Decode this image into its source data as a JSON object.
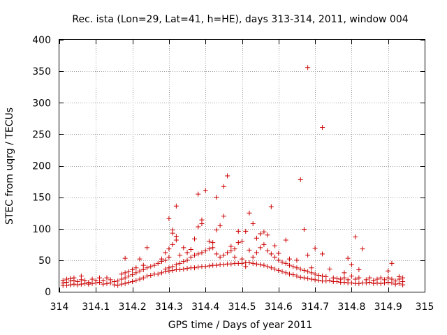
{
  "chart_data": {
    "type": "scatter",
    "title": "Rec. ista (Lon=29, Lat=41, h=HE), days 313-314, 2011, window 004",
    "xlabel": "GPS time / Days of year 2011",
    "ylabel": "STEC from uqrg / TECUs",
    "xlim": [
      314,
      315
    ],
    "ylim": [
      0,
      400
    ],
    "xticks": [
      "314",
      "314.1",
      "314.2",
      "314.3",
      "314.4",
      "314.5",
      "314.6",
      "314.7",
      "314.8",
      "314.9",
      "315"
    ],
    "yticks": [
      "0",
      "50",
      "100",
      "150",
      "200",
      "250",
      "300",
      "350",
      "400"
    ],
    "grid": true,
    "legend": "none",
    "marker": "+",
    "color": "#cc0000",
    "points": [
      [
        314.01,
        10
      ],
      [
        314.01,
        14
      ],
      [
        314.01,
        18
      ],
      [
        314.02,
        10
      ],
      [
        314.02,
        15
      ],
      [
        314.02,
        20
      ],
      [
        314.03,
        11
      ],
      [
        314.03,
        17
      ],
      [
        314.03,
        21
      ],
      [
        314.04,
        12
      ],
      [
        314.04,
        18
      ],
      [
        314.04,
        22
      ],
      [
        314.05,
        11
      ],
      [
        314.05,
        16
      ],
      [
        314.06,
        12
      ],
      [
        314.06,
        19
      ],
      [
        314.06,
        25
      ],
      [
        314.07,
        13
      ],
      [
        314.07,
        18
      ],
      [
        314.08,
        12
      ],
      [
        314.08,
        15
      ],
      [
        314.09,
        13
      ],
      [
        314.09,
        20
      ],
      [
        314.1,
        14
      ],
      [
        314.1,
        18
      ],
      [
        314.11,
        15
      ],
      [
        314.11,
        22
      ],
      [
        314.12,
        12
      ],
      [
        314.12,
        18
      ],
      [
        314.13,
        13
      ],
      [
        314.13,
        22
      ],
      [
        314.14,
        14
      ],
      [
        314.14,
        19
      ],
      [
        314.15,
        11
      ],
      [
        314.15,
        16
      ],
      [
        314.16,
        10
      ],
      [
        314.16,
        17
      ],
      [
        314.17,
        12
      ],
      [
        314.17,
        20
      ],
      [
        314.17,
        28
      ],
      [
        314.18,
        13
      ],
      [
        314.18,
        22
      ],
      [
        314.18,
        30
      ],
      [
        314.18,
        53
      ],
      [
        314.19,
        15
      ],
      [
        314.19,
        25
      ],
      [
        314.19,
        32
      ],
      [
        314.2,
        16
      ],
      [
        314.2,
        27
      ],
      [
        314.2,
        35
      ],
      [
        314.21,
        18
      ],
      [
        314.21,
        30
      ],
      [
        314.21,
        38
      ],
      [
        314.22,
        20
      ],
      [
        314.22,
        33
      ],
      [
        314.22,
        52
      ],
      [
        314.23,
        22
      ],
      [
        314.23,
        35
      ],
      [
        314.23,
        42
      ],
      [
        314.24,
        25
      ],
      [
        314.24,
        38
      ],
      [
        314.24,
        70
      ],
      [
        314.25,
        26
      ],
      [
        314.25,
        40
      ],
      [
        314.26,
        28
      ],
      [
        314.26,
        42
      ],
      [
        314.27,
        28
      ],
      [
        314.27,
        45
      ],
      [
        314.28,
        30
      ],
      [
        314.28,
        48
      ],
      [
        314.28,
        52
      ],
      [
        314.29,
        32
      ],
      [
        314.29,
        36
      ],
      [
        314.29,
        50
      ],
      [
        314.29,
        62
      ],
      [
        314.3,
        33
      ],
      [
        314.3,
        38
      ],
      [
        314.3,
        55
      ],
      [
        314.3,
        68
      ],
      [
        314.3,
        116
      ],
      [
        314.31,
        34
      ],
      [
        314.31,
        40
      ],
      [
        314.31,
        75
      ],
      [
        314.31,
        93
      ],
      [
        314.31,
        98
      ],
      [
        314.32,
        35
      ],
      [
        314.32,
        43
      ],
      [
        314.32,
        82
      ],
      [
        314.32,
        88
      ],
      [
        314.32,
        136
      ],
      [
        314.33,
        35
      ],
      [
        314.33,
        45
      ],
      [
        314.33,
        58
      ],
      [
        314.34,
        36
      ],
      [
        314.34,
        48
      ],
      [
        314.34,
        70
      ],
      [
        314.35,
        37
      ],
      [
        314.35,
        50
      ],
      [
        314.35,
        62
      ],
      [
        314.36,
        38
      ],
      [
        314.36,
        55
      ],
      [
        314.36,
        67
      ],
      [
        314.37,
        38
      ],
      [
        314.37,
        58
      ],
      [
        314.37,
        84
      ],
      [
        314.38,
        39
      ],
      [
        314.38,
        60
      ],
      [
        314.38,
        103
      ],
      [
        314.38,
        155
      ],
      [
        314.39,
        40
      ],
      [
        314.39,
        62
      ],
      [
        314.39,
        108
      ],
      [
        314.39,
        114
      ],
      [
        314.4,
        40
      ],
      [
        314.4,
        65
      ],
      [
        314.4,
        161
      ],
      [
        314.41,
        41
      ],
      [
        314.41,
        68
      ],
      [
        314.41,
        80
      ],
      [
        314.42,
        42
      ],
      [
        314.42,
        70
      ],
      [
        314.42,
        78
      ],
      [
        314.43,
        42
      ],
      [
        314.43,
        60
      ],
      [
        314.43,
        98
      ],
      [
        314.43,
        150
      ],
      [
        314.44,
        43
      ],
      [
        314.44,
        55
      ],
      [
        314.44,
        105
      ],
      [
        314.45,
        43
      ],
      [
        314.45,
        58
      ],
      [
        314.45,
        120
      ],
      [
        314.45,
        167
      ],
      [
        314.46,
        44
      ],
      [
        314.46,
        62
      ],
      [
        314.46,
        184
      ],
      [
        314.47,
        44
      ],
      [
        314.47,
        65
      ],
      [
        314.47,
        72
      ],
      [
        314.48,
        45
      ],
      [
        314.48,
        68
      ],
      [
        314.48,
        55
      ],
      [
        314.49,
        45
      ],
      [
        314.49,
        78
      ],
      [
        314.49,
        96
      ],
      [
        314.5,
        45
      ],
      [
        314.5,
        52
      ],
      [
        314.5,
        80
      ],
      [
        314.51,
        46
      ],
      [
        314.51,
        96
      ],
      [
        314.51,
        40
      ],
      [
        314.52,
        46
      ],
      [
        314.52,
        66
      ],
      [
        314.52,
        125
      ],
      [
        314.53,
        45
      ],
      [
        314.53,
        55
      ],
      [
        314.53,
        108
      ],
      [
        314.54,
        44
      ],
      [
        314.54,
        62
      ],
      [
        314.54,
        85
      ],
      [
        314.55,
        43
      ],
      [
        314.55,
        70
      ],
      [
        314.55,
        92
      ],
      [
        314.56,
        42
      ],
      [
        314.56,
        75
      ],
      [
        314.56,
        95
      ],
      [
        314.57,
        40
      ],
      [
        314.57,
        65
      ],
      [
        314.57,
        90
      ],
      [
        314.58,
        38
      ],
      [
        314.58,
        60
      ],
      [
        314.58,
        135
      ],
      [
        314.59,
        36
      ],
      [
        314.59,
        55
      ],
      [
        314.59,
        73
      ],
      [
        314.6,
        34
      ],
      [
        314.6,
        50
      ],
      [
        314.6,
        61
      ],
      [
        314.61,
        32
      ],
      [
        314.61,
        47
      ],
      [
        314.62,
        30
      ],
      [
        314.62,
        45
      ],
      [
        314.62,
        82
      ],
      [
        314.63,
        28
      ],
      [
        314.63,
        42
      ],
      [
        314.63,
        52
      ],
      [
        314.64,
        27
      ],
      [
        314.64,
        40
      ],
      [
        314.65,
        25
      ],
      [
        314.65,
        38
      ],
      [
        314.65,
        50
      ],
      [
        314.66,
        23
      ],
      [
        314.66,
        36
      ],
      [
        314.66,
        178
      ],
      [
        314.67,
        22
      ],
      [
        314.67,
        34
      ],
      [
        314.67,
        99
      ],
      [
        314.68,
        21
      ],
      [
        314.68,
        32
      ],
      [
        314.68,
        58
      ],
      [
        314.68,
        356
      ],
      [
        314.69,
        20
      ],
      [
        314.69,
        30
      ],
      [
        314.69,
        38
      ],
      [
        314.7,
        19
      ],
      [
        314.7,
        28
      ],
      [
        314.7,
        69
      ],
      [
        314.71,
        18
      ],
      [
        314.71,
        26
      ],
      [
        314.72,
        17
      ],
      [
        314.72,
        25
      ],
      [
        314.72,
        60
      ],
      [
        314.72,
        261
      ],
      [
        314.73,
        17
      ],
      [
        314.73,
        24
      ],
      [
        314.74,
        18
      ],
      [
        314.74,
        36
      ],
      [
        314.75,
        16
      ],
      [
        314.75,
        22
      ],
      [
        314.76,
        16
      ],
      [
        314.76,
        21
      ],
      [
        314.77,
        15
      ],
      [
        314.77,
        20
      ],
      [
        314.78,
        15
      ],
      [
        314.78,
        22
      ],
      [
        314.78,
        30
      ],
      [
        314.79,
        14
      ],
      [
        314.79,
        19
      ],
      [
        314.79,
        53
      ],
      [
        314.8,
        14
      ],
      [
        314.8,
        25
      ],
      [
        314.8,
        43
      ],
      [
        314.81,
        13
      ],
      [
        314.81,
        20
      ],
      [
        314.81,
        87
      ],
      [
        314.82,
        13
      ],
      [
        314.82,
        22
      ],
      [
        314.82,
        35
      ],
      [
        314.83,
        14
      ],
      [
        314.83,
        68
      ],
      [
        314.84,
        14
      ],
      [
        314.84,
        19
      ],
      [
        314.85,
        15
      ],
      [
        314.85,
        22
      ],
      [
        314.86,
        13
      ],
      [
        314.86,
        18
      ],
      [
        314.87,
        14
      ],
      [
        314.87,
        20
      ],
      [
        314.88,
        13
      ],
      [
        314.88,
        22
      ],
      [
        314.89,
        14
      ],
      [
        314.89,
        19
      ],
      [
        314.9,
        15
      ],
      [
        314.9,
        22
      ],
      [
        314.9,
        33
      ],
      [
        314.91,
        14
      ],
      [
        314.91,
        20
      ],
      [
        314.91,
        45
      ],
      [
        314.92,
        12
      ],
      [
        314.92,
        17
      ],
      [
        314.93,
        13
      ],
      [
        314.93,
        20
      ],
      [
        314.93,
        24
      ],
      [
        314.94,
        11
      ],
      [
        314.94,
        16
      ],
      [
        314.94,
        22
      ]
    ]
  }
}
